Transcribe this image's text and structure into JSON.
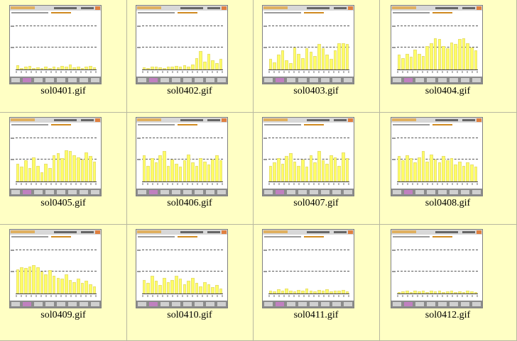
{
  "gallery": {
    "items": [
      {
        "caption": "sol0401.gif",
        "bars": [
          0.08,
          0.03,
          0.05,
          0.07,
          0.02,
          0.04,
          0.03,
          0.06,
          0.03,
          0.05,
          0.04,
          0.07,
          0.05,
          0.09,
          0.04,
          0.06,
          0.03,
          0.05,
          0.07,
          0.04
        ]
      },
      {
        "caption": "sol0402.gif",
        "bars": [
          0.04,
          0.03,
          0.05,
          0.06,
          0.04,
          0.03,
          0.06,
          0.05,
          0.07,
          0.05,
          0.08,
          0.06,
          0.1,
          0.22,
          0.35,
          0.15,
          0.3,
          0.18,
          0.12,
          0.2
        ]
      },
      {
        "caption": "sol0403.gif",
        "bars": [
          0.2,
          0.14,
          0.28,
          0.36,
          0.18,
          0.12,
          0.42,
          0.3,
          0.22,
          0.4,
          0.34,
          0.26,
          0.48,
          0.4,
          0.28,
          0.2,
          0.36,
          0.5,
          0.5,
          0.48
        ]
      },
      {
        "caption": "sol0404.gif",
        "bars": [
          0.28,
          0.22,
          0.3,
          0.24,
          0.38,
          0.3,
          0.26,
          0.44,
          0.5,
          0.6,
          0.58,
          0.44,
          0.4,
          0.52,
          0.48,
          0.58,
          0.6,
          0.5,
          0.42,
          0.36
        ]
      },
      {
        "caption": "sol0405.gif",
        "bars": [
          0.34,
          0.28,
          0.4,
          0.26,
          0.46,
          0.3,
          0.18,
          0.34,
          0.26,
          0.5,
          0.54,
          0.44,
          0.6,
          0.58,
          0.5,
          0.46,
          0.42,
          0.56,
          0.48,
          0.38
        ]
      },
      {
        "caption": "sol0406.gif",
        "bars": [
          0.5,
          0.3,
          0.44,
          0.36,
          0.5,
          0.58,
          0.3,
          0.42,
          0.34,
          0.28,
          0.4,
          0.52,
          0.36,
          0.3,
          0.44,
          0.38,
          0.32,
          0.42,
          0.5,
          0.4
        ]
      },
      {
        "caption": "sol0407.gif",
        "bars": [
          0.3,
          0.36,
          0.44,
          0.34,
          0.48,
          0.54,
          0.38,
          0.3,
          0.42,
          0.28,
          0.5,
          0.36,
          0.58,
          0.4,
          0.34,
          0.5,
          0.46,
          0.3,
          0.56,
          0.44
        ]
      },
      {
        "caption": "sol0408.gif",
        "bars": [
          0.48,
          0.4,
          0.5,
          0.44,
          0.36,
          0.46,
          0.58,
          0.38,
          0.52,
          0.42,
          0.36,
          0.48,
          0.4,
          0.44,
          0.32,
          0.38,
          0.3,
          0.36,
          0.32,
          0.28
        ]
      },
      {
        "caption": "sol0409.gif",
        "bars": [
          0.46,
          0.5,
          0.48,
          0.52,
          0.54,
          0.5,
          0.42,
          0.36,
          0.44,
          0.34,
          0.3,
          0.28,
          0.36,
          0.26,
          0.22,
          0.28,
          0.2,
          0.24,
          0.18,
          0.14
        ]
      },
      {
        "caption": "sol0410.gif",
        "bars": [
          0.26,
          0.2,
          0.34,
          0.24,
          0.16,
          0.3,
          0.22,
          0.26,
          0.34,
          0.28,
          0.18,
          0.24,
          0.3,
          0.2,
          0.14,
          0.22,
          0.18,
          0.12,
          0.16,
          0.1
        ]
      },
      {
        "caption": "sol0411.gif",
        "bars": [
          0.06,
          0.04,
          0.08,
          0.05,
          0.1,
          0.06,
          0.04,
          0.07,
          0.05,
          0.09,
          0.06,
          0.04,
          0.07,
          0.05,
          0.08,
          0.04,
          0.06,
          0.05,
          0.07,
          0.04
        ]
      },
      {
        "caption": "sol0412.gif",
        "bars": [
          0.03,
          0.04,
          0.05,
          0.03,
          0.06,
          0.04,
          0.05,
          0.03,
          0.06,
          0.04,
          0.05,
          0.03,
          0.04,
          0.05,
          0.03,
          0.04,
          0.03,
          0.05,
          0.04,
          0.03
        ]
      }
    ]
  }
}
